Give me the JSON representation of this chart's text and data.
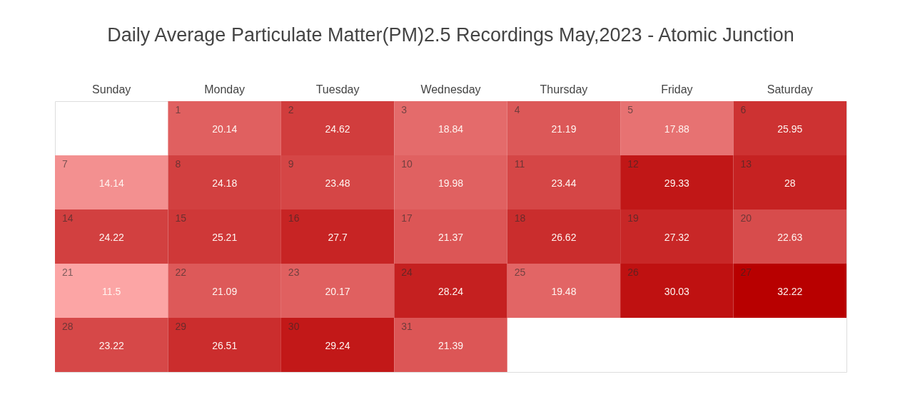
{
  "chart_data": {
    "type": "heatmap",
    "title": "Daily Average Particulate Matter(PM)2.5 Recordings May,2023 - Atomic Junction",
    "categories": [
      "Sunday",
      "Monday",
      "Tuesday",
      "Wednesday",
      "Thursday",
      "Friday",
      "Saturday"
    ],
    "y_categories": [
      null,
      null,
      null,
      null,
      null
    ],
    "cells": [
      [
        null,
        20.14,
        24.62,
        18.84,
        21.19,
        17.88,
        25.95
      ],
      [
        14.14,
        24.18,
        23.48,
        19.98,
        23.44,
        29.33,
        28
      ],
      [
        24.22,
        25.21,
        27.7,
        21.37,
        26.62,
        27.32,
        22.63
      ],
      [
        11.5,
        21.09,
        20.17,
        28.24,
        19.48,
        30.03,
        32.22
      ],
      [
        23.22,
        26.51,
        29.24,
        21.39,
        null,
        null,
        null
      ]
    ],
    "annotations": [
      "1",
      "2",
      "3",
      "4",
      "5",
      "6",
      "7",
      "8",
      "9",
      "10",
      "11",
      "12",
      "13",
      "14",
      "15",
      "16",
      "17",
      "18",
      "19",
      "20",
      "21",
      "22",
      "23",
      "24",
      "25",
      "26",
      "27",
      "28",
      "29",
      "30",
      "31"
    ],
    "data_labels": true,
    "colors": [
      "#fca5a5",
      "#b80000"
    ],
    "tick_labels": "x"
  }
}
